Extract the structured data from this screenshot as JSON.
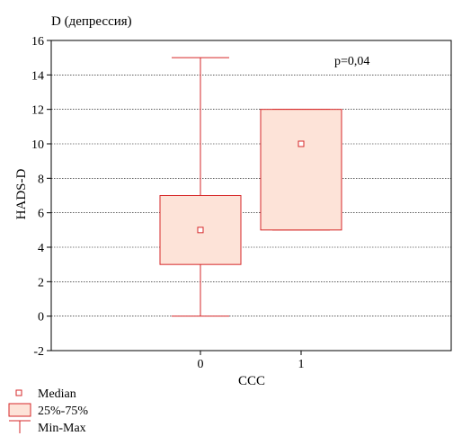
{
  "chart_data": {
    "type": "box",
    "title": "D (депрессия)",
    "xlabel": "CCC",
    "ylabel": "HADS-D",
    "ylim": [
      -2,
      16
    ],
    "yticks": [
      -2,
      0,
      2,
      4,
      6,
      8,
      10,
      12,
      14,
      16
    ],
    "grid": true,
    "annotation": "p=0,04",
    "categories": [
      "0",
      "1"
    ],
    "boxes": [
      {
        "category": "0",
        "median": 5,
        "q1": 3,
        "q3": 7,
        "min": 0,
        "max": 15
      },
      {
        "category": "1",
        "median": 10,
        "q1": 5,
        "q3": 12,
        "min": 5,
        "max": 12
      }
    ],
    "legend": [
      {
        "key": "median",
        "label": "Median"
      },
      {
        "key": "box",
        "label": "25%-75%"
      },
      {
        "key": "whisker",
        "label": "Min-Max"
      }
    ],
    "legend_position": "bottom-left",
    "colors": {
      "stroke": "#d62728",
      "fill": "#fde3d8",
      "grid": "#000000"
    }
  }
}
